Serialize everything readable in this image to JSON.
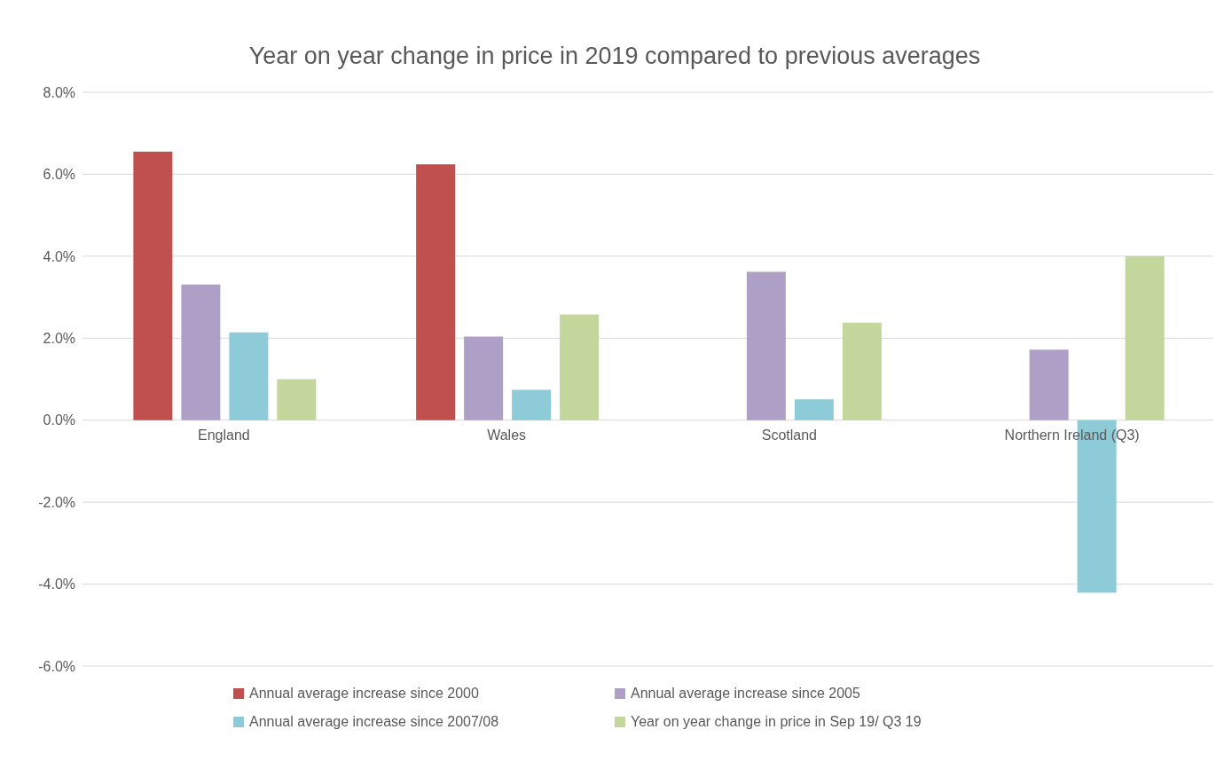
{
  "chart_data": {
    "type": "bar",
    "title": "Year on year change in price in 2019 compared to previous averages",
    "categories": [
      "England",
      "Wales",
      "Scotland",
      "Northern Ireland (Q3)"
    ],
    "series": [
      {
        "name": "Annual average increase since 2000",
        "color": "#c0504d",
        "values": [
          6.55,
          6.24,
          null,
          null
        ]
      },
      {
        "name": "Annual average increase since 2005",
        "color": "#ae9fc6",
        "values": [
          3.31,
          2.04,
          3.62,
          1.72
        ]
      },
      {
        "name": "Annual average increase since 2007/08",
        "color": "#8dcbd9",
        "values": [
          2.14,
          0.74,
          0.51,
          -4.21
        ]
      },
      {
        "name": "Year on year change in price in Sep 19/ Q3 19",
        "color": "#c3d69b",
        "values": [
          1.0,
          2.58,
          2.38,
          4.0
        ]
      }
    ],
    "ylim": [
      -6,
      8
    ],
    "yticks": [
      {
        "value": -6,
        "label": "-6.0%"
      },
      {
        "value": -4,
        "label": "-4.0%"
      },
      {
        "value": -2,
        "label": "-2.0%"
      },
      {
        "value": 0,
        "label": "0.0%"
      },
      {
        "value": 2,
        "label": "2.0%"
      },
      {
        "value": 4,
        "label": "4.0%"
      },
      {
        "value": 6,
        "label": "6.0%"
      },
      {
        "value": 8,
        "label": "8.0%"
      }
    ],
    "grid": "y",
    "legend": "bottom"
  }
}
